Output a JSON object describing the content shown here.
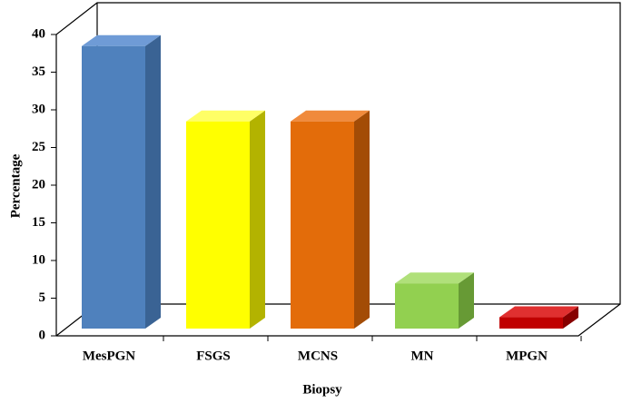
{
  "chart_data": {
    "type": "bar3d",
    "x_label": "Biopsy",
    "y_label": "Percentage",
    "categories": [
      "MesPGN",
      "FSGS",
      "MCNS",
      "MN",
      "MPGN"
    ],
    "values": [
      37.5,
      27.5,
      27.5,
      6,
      1.5
    ],
    "colors": [
      "#4f81bd",
      "#ffff00",
      "#e36c0a",
      "#92d050",
      "#c00000"
    ],
    "side_colors": [
      "#3a6394",
      "#b3b300",
      "#a34c06",
      "#679a35",
      "#870000"
    ],
    "top_colors": [
      "#6f9bd6",
      "#ffff66",
      "#f08a3c",
      "#b0e07a",
      "#e03030"
    ],
    "ylim": [
      0,
      40
    ],
    "yticks": [
      0,
      5,
      10,
      15,
      20,
      25,
      30,
      35,
      40
    ],
    "grid": false
  }
}
